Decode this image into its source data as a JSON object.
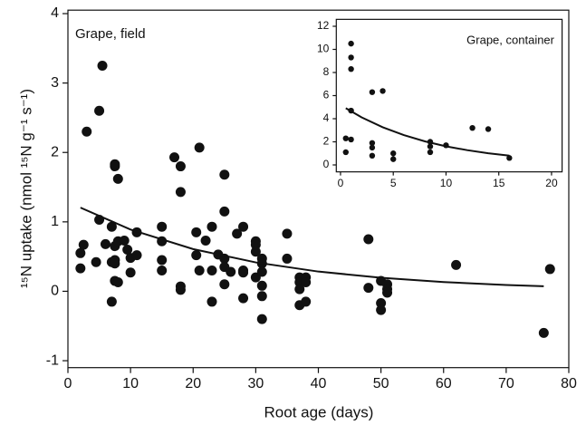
{
  "chart_data": [
    {
      "type": "scatter",
      "title": "Grape, field",
      "xlabel": "Root age (days)",
      "ylabel": "¹⁵N uptake (nmol ¹⁵N g⁻¹ s⁻¹)",
      "xlim": [
        0,
        80
      ],
      "ylim": [
        -1.1,
        4.05
      ],
      "xticks": [
        0,
        10,
        20,
        30,
        40,
        50,
        60,
        70,
        80
      ],
      "yticks": [
        -1,
        0,
        1,
        2,
        3,
        4
      ],
      "color": "#111111",
      "points": {
        "x": [
          2,
          2.5,
          2,
          3,
          4.5,
          5,
          5,
          5.5,
          6,
          7,
          7,
          7,
          7.5,
          7.5,
          7.5,
          7.5,
          7.5,
          7.5,
          8,
          8,
          8,
          9,
          9.5,
          10,
          10,
          11,
          11,
          15,
          15,
          15,
          15,
          17,
          18,
          18,
          18,
          18,
          20.5,
          20.5,
          21,
          21,
          22,
          23,
          23,
          23,
          24,
          25,
          25,
          25,
          25,
          25,
          26,
          27,
          28,
          28,
          28,
          28,
          30,
          30,
          30,
          30,
          31,
          31,
          31,
          31,
          31,
          31,
          35,
          35,
          37,
          37,
          37,
          37,
          38,
          38,
          38,
          48,
          48,
          50,
          50,
          50,
          51,
          51,
          51,
          62,
          76,
          77
        ],
        "y": [
          0.55,
          0.67,
          0.33,
          2.3,
          0.42,
          2.6,
          1.03,
          3.25,
          0.68,
          0.93,
          0.42,
          -0.15,
          0.45,
          0.4,
          1.8,
          1.83,
          0.15,
          0.65,
          1.62,
          0.72,
          0.13,
          0.73,
          0.6,
          0.27,
          0.48,
          0.85,
          0.52,
          0.93,
          0.72,
          0.45,
          0.3,
          1.93,
          1.8,
          1.43,
          0.07,
          0.02,
          0.85,
          0.52,
          2.07,
          0.3,
          0.73,
          0.93,
          0.3,
          -0.15,
          0.53,
          1.68,
          1.15,
          0.47,
          0.35,
          0.1,
          0.28,
          0.83,
          0.93,
          0.3,
          0.27,
          -0.1,
          0.72,
          0.67,
          0.57,
          0.2,
          0.47,
          0.4,
          0.28,
          0.08,
          -0.07,
          -0.4,
          0.83,
          0.47,
          0.2,
          0.13,
          0.03,
          -0.2,
          0.2,
          0.13,
          -0.15,
          0.75,
          0.05,
          0.15,
          -0.17,
          -0.27,
          0.1,
          0.03,
          -0.02,
          0.38,
          -0.6,
          0.32
        ]
      },
      "trend": {
        "x": [
          2,
          10,
          20,
          30,
          40,
          50,
          60,
          70,
          76
        ],
        "y": [
          1.205,
          0.889,
          0.608,
          0.416,
          0.284,
          0.195,
          0.133,
          0.091,
          0.072
        ]
      }
    },
    {
      "type": "scatter",
      "title": "Grape, container",
      "xlim": [
        -0.4,
        21
      ],
      "ylim": [
        -0.6,
        12.6
      ],
      "xticks": [
        0,
        5,
        10,
        15,
        20
      ],
      "yticks": [
        0,
        2,
        4,
        6,
        8,
        10,
        12
      ],
      "color": "#111111",
      "points": {
        "x": [
          0.5,
          0.5,
          1,
          1,
          1,
          1,
          1,
          3,
          3,
          3,
          3,
          4,
          5,
          5,
          8.5,
          8.5,
          8.5,
          10,
          12.5,
          14,
          16
        ],
        "y": [
          2.3,
          1.1,
          10.5,
          9.3,
          8.3,
          4.7,
          2.2,
          6.3,
          1.9,
          1.5,
          0.8,
          6.4,
          1.0,
          0.5,
          2.0,
          1.6,
          1.1,
          1.7,
          3.2,
          3.1,
          0.6
        ]
      },
      "trend": {
        "x": [
          0.5,
          2,
          4,
          6,
          8,
          10,
          12,
          14,
          16
        ],
        "y": [
          4.91,
          4.12,
          3.26,
          2.58,
          2.04,
          1.61,
          1.28,
          1.01,
          0.8
        ]
      }
    }
  ]
}
